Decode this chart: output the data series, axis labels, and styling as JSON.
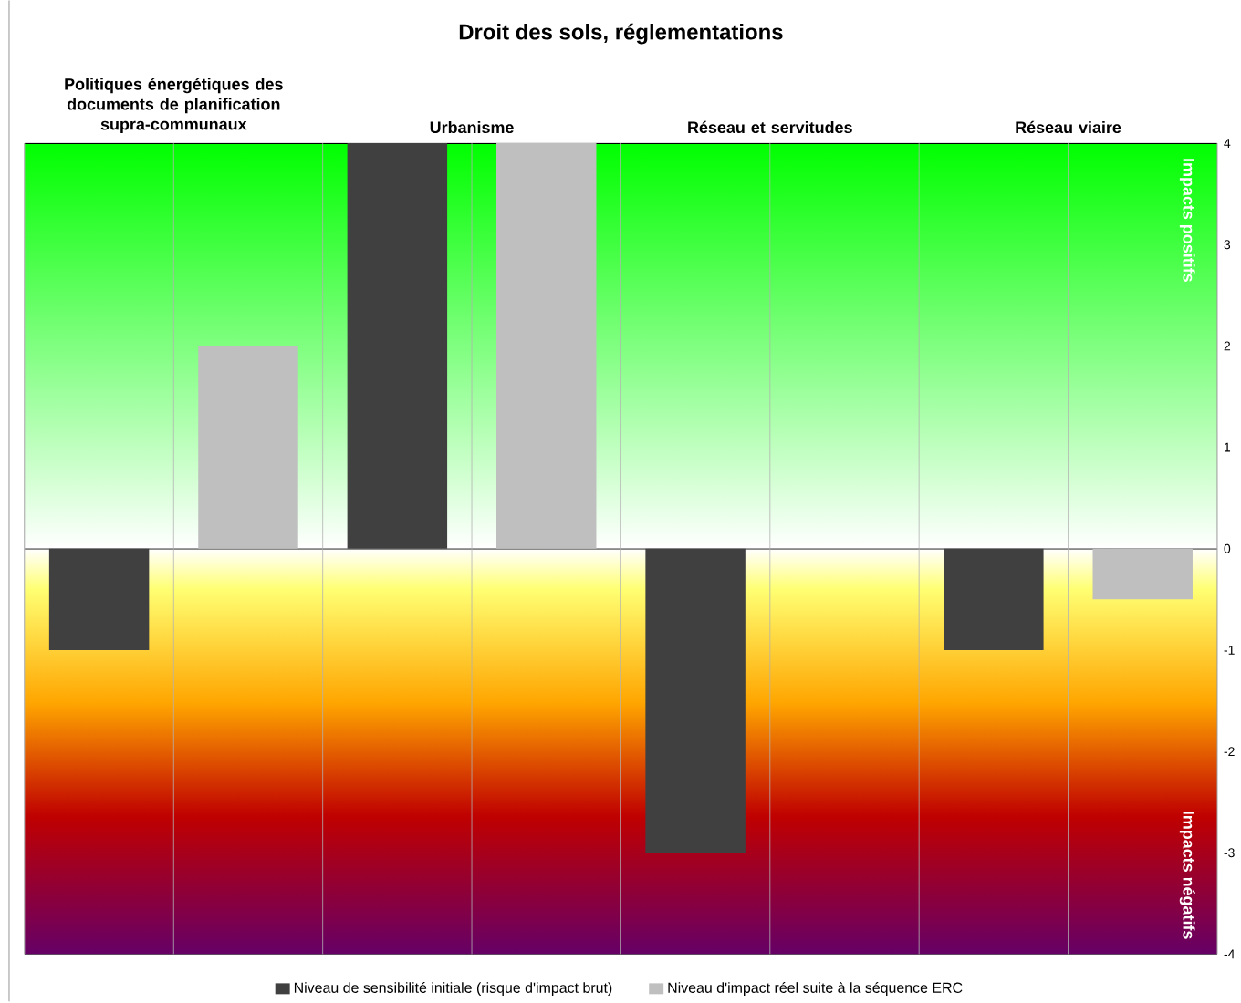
{
  "chart_data": {
    "type": "bar",
    "title": "Droit des sols, réglementations",
    "categories": [
      "Politiques énergétiques des documents de planification supra-communaux",
      "Urbanisme",
      "Réseau et servitudes",
      "Réseau viaire"
    ],
    "series": [
      {
        "name": "Niveau de sensibilité initiale (risque d'impact brut)",
        "color": "#404040",
        "values": [
          -1,
          4,
          -3,
          -1
        ]
      },
      {
        "name": "Niveau d'impact réel suite à la séquence ERC",
        "color": "#bfbfbf",
        "values": [
          2,
          4,
          0,
          -0.5
        ]
      }
    ],
    "ylim": [
      -4,
      4
    ],
    "yticks": [
      -4,
      -3,
      -2,
      -1,
      0,
      1,
      2,
      3,
      4
    ],
    "grid": "x",
    "legend": "bottom",
    "bands": [
      {
        "axis": "y",
        "from": 0,
        "to": 4,
        "label": "Impacts positifs",
        "color": "#00ff00"
      },
      {
        "axis": "y",
        "from": 0,
        "to": -4,
        "label": "Impacts négatifs",
        "color": "#660066"
      }
    ]
  }
}
